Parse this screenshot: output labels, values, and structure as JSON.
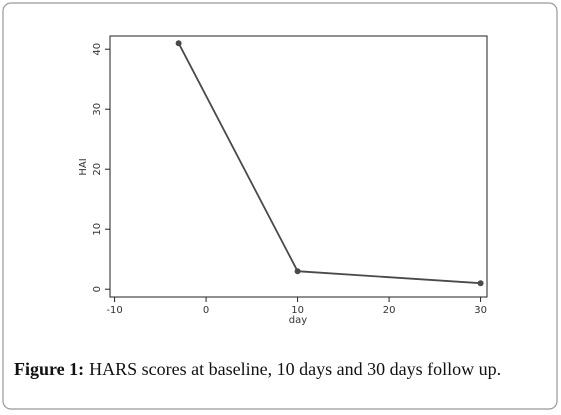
{
  "chart_data": {
    "type": "line",
    "x": [
      -3,
      10,
      30
    ],
    "values": [
      41,
      3,
      1
    ],
    "color": "#4a4a4a",
    "xlabel": "day",
    "ylabel": "HAI",
    "xlim": [
      -10.5,
      30.7
    ],
    "xticks": [
      -10,
      0,
      10,
      20,
      30
    ],
    "ylim": [
      -1.3,
      42.2
    ],
    "yticks": [
      0,
      10,
      20,
      30,
      40
    ],
    "grid": false,
    "caption_label": "Figure 1:",
    "caption_text": "HARS scores at baseline, 10 days and 30 days follow up."
  }
}
